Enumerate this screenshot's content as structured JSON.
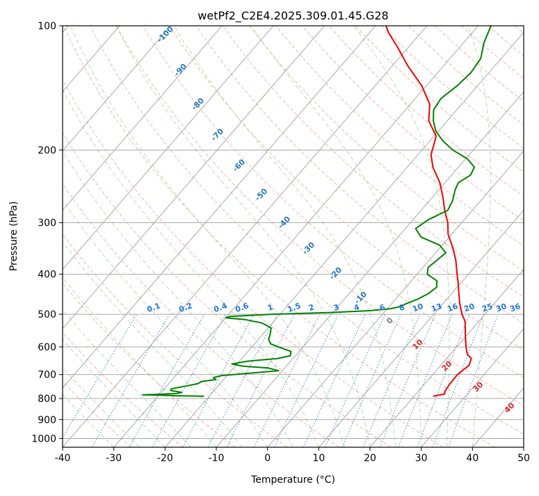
{
  "chart_data": {
    "type": "line",
    "title": "wetPf2_C2E4.2025.309.01.45.G28",
    "xlabel": "Temperature (°C)",
    "ylabel": "Pressure (hPa)",
    "xlim": [
      -40,
      50
    ],
    "ylim": [
      1050,
      100
    ],
    "y_scale": "log",
    "x_ticks": [
      -40,
      -30,
      -20,
      -10,
      0,
      10,
      20,
      30,
      40,
      50
    ],
    "y_ticks": [
      100,
      200,
      300,
      400,
      500,
      600,
      700,
      800,
      900,
      1000
    ],
    "grid": true,
    "skew_t": true,
    "series": [
      {
        "color": "#ee0000",
        "role": "temperature",
        "points": [
          {
            "p": 790,
            "t": 23.7
          },
          {
            "p": 785,
            "t": 24.6
          },
          {
            "p": 780,
            "t": 25.6
          },
          {
            "p": 770,
            "t": 25.2
          },
          {
            "p": 740,
            "t": 24.9
          },
          {
            "p": 700,
            "t": 24.8
          },
          {
            "p": 665,
            "t": 25.5
          },
          {
            "p": 640,
            "t": 24.8
          },
          {
            "p": 625,
            "t": 23.3
          },
          {
            "p": 600,
            "t": 21.8
          },
          {
            "p": 560,
            "t": 19.6
          },
          {
            "p": 520,
            "t": 17.3
          },
          {
            "p": 500,
            "t": 15.5
          },
          {
            "p": 470,
            "t": 13.2
          },
          {
            "p": 440,
            "t": 11.0
          },
          {
            "p": 420,
            "t": 9.5
          },
          {
            "p": 400,
            "t": 7.8
          },
          {
            "p": 370,
            "t": 5.2
          },
          {
            "p": 345,
            "t": 2.5
          },
          {
            "p": 320,
            "t": -0.7
          },
          {
            "p": 300,
            "t": -2.7
          },
          {
            "p": 280,
            "t": -5.4
          },
          {
            "p": 260,
            "t": -8.0
          },
          {
            "p": 240,
            "t": -11.0
          },
          {
            "p": 220,
            "t": -15.0
          },
          {
            "p": 205,
            "t": -17.5
          },
          {
            "p": 195,
            "t": -18.5
          },
          {
            "p": 185,
            "t": -19.6
          },
          {
            "p": 170,
            "t": -23.6
          },
          {
            "p": 155,
            "t": -26.2
          },
          {
            "p": 140,
            "t": -30.8
          },
          {
            "p": 125,
            "t": -37.0
          },
          {
            "p": 113,
            "t": -42.0
          },
          {
            "p": 104,
            "t": -46.3
          },
          {
            "p": 100,
            "t": -48.0
          }
        ]
      },
      {
        "color": "#008000",
        "role": "dewpoint",
        "points": [
          {
            "p": 790,
            "t": -21.0
          },
          {
            "p": 788,
            "t": -26.5
          },
          {
            "p": 786,
            "t": -29.0
          },
          {
            "p": 784,
            "t": -33.2
          },
          {
            "p": 782,
            "t": -30.8
          },
          {
            "p": 778,
            "t": -26.8
          },
          {
            "p": 773,
            "t": -26.0
          },
          {
            "p": 765,
            "t": -28.5
          },
          {
            "p": 758,
            "t": -28.7
          },
          {
            "p": 745,
            "t": -26.0
          },
          {
            "p": 736,
            "t": -24.3
          },
          {
            "p": 728,
            "t": -24.0
          },
          {
            "p": 720,
            "t": -21.5
          },
          {
            "p": 712,
            "t": -22.3
          },
          {
            "p": 704,
            "t": -21.0
          },
          {
            "p": 695,
            "t": -16.0
          },
          {
            "p": 685,
            "t": -10.8
          },
          {
            "p": 675,
            "t": -13.2
          },
          {
            "p": 668,
            "t": -18.5
          },
          {
            "p": 660,
            "t": -21.0
          },
          {
            "p": 650,
            "t": -18.5
          },
          {
            "p": 640,
            "t": -13.0
          },
          {
            "p": 630,
            "t": -11.0
          },
          {
            "p": 615,
            "t": -11.6
          },
          {
            "p": 605,
            "t": -13.8
          },
          {
            "p": 590,
            "t": -16.8
          },
          {
            "p": 575,
            "t": -18.0
          },
          {
            "p": 560,
            "t": -18.5
          },
          {
            "p": 540,
            "t": -19.4
          },
          {
            "p": 525,
            "t": -22.0
          },
          {
            "p": 515,
            "t": -26.0
          },
          {
            "p": 510,
            "t": -30.0
          },
          {
            "p": 506,
            "t": -29.4
          },
          {
            "p": 500,
            "t": -21.5
          },
          {
            "p": 495,
            "t": -10.0
          },
          {
            "p": 490,
            "t": -3.0
          },
          {
            "p": 485,
            "t": 0.5
          },
          {
            "p": 480,
            "t": 2.0
          },
          {
            "p": 470,
            "t": 3.0
          },
          {
            "p": 460,
            "t": 4.3
          },
          {
            "p": 445,
            "t": 5.5
          },
          {
            "p": 430,
            "t": 6.0
          },
          {
            "p": 415,
            "t": 5.0
          },
          {
            "p": 400,
            "t": 2.0
          },
          {
            "p": 385,
            "t": 1.0
          },
          {
            "p": 370,
            "t": 1.5
          },
          {
            "p": 355,
            "t": 2.0
          },
          {
            "p": 340,
            "t": -0.5
          },
          {
            "p": 325,
            "t": -5.5
          },
          {
            "p": 310,
            "t": -8.0
          },
          {
            "p": 295,
            "t": -7.0
          },
          {
            "p": 280,
            "t": -4.8
          },
          {
            "p": 265,
            "t": -5.5
          },
          {
            "p": 250,
            "t": -6.8
          },
          {
            "p": 240,
            "t": -7.4
          },
          {
            "p": 230,
            "t": -6.3
          },
          {
            "p": 220,
            "t": -6.9
          },
          {
            "p": 210,
            "t": -9.7
          },
          {
            "p": 200,
            "t": -14.0
          },
          {
            "p": 190,
            "t": -17.5
          },
          {
            "p": 180,
            "t": -20.5
          },
          {
            "p": 170,
            "t": -22.7
          },
          {
            "p": 160,
            "t": -24.5
          },
          {
            "p": 150,
            "t": -25.0
          },
          {
            "p": 140,
            "t": -24.0
          },
          {
            "p": 130,
            "t": -23.5
          },
          {
            "p": 120,
            "t": -24.0
          },
          {
            "p": 110,
            "t": -26.0
          },
          {
            "p": 100,
            "t": -27.5
          }
        ]
      }
    ],
    "dry_adiabat_labels": [
      "-100",
      "-90",
      "-80",
      "-70",
      "-60",
      "-50",
      "-40",
      "-30",
      "-20",
      "-10",
      "0",
      "10",
      "20",
      "30",
      "40"
    ],
    "mixing_ratio_labels": [
      "0.1",
      "0.2",
      "0.4",
      "0.6",
      "1",
      "1.5",
      "2",
      "3",
      "4",
      "6",
      "8",
      "10",
      "13",
      "16",
      "20",
      "25",
      "30",
      "36"
    ],
    "colors": {
      "temperature": "#ee0000",
      "dewpoint": "#008000",
      "isotherms": "#a9a9a9",
      "dry_adiabats": "#f5a38e",
      "moist_adiabats": "#9fd49f",
      "mixing_ratio": "#1f77d4",
      "adiabat_label_cold": "#2a7ab8",
      "adiabat_label_warm": "#d62728",
      "adiabat_label_zero": "#808080"
    }
  }
}
